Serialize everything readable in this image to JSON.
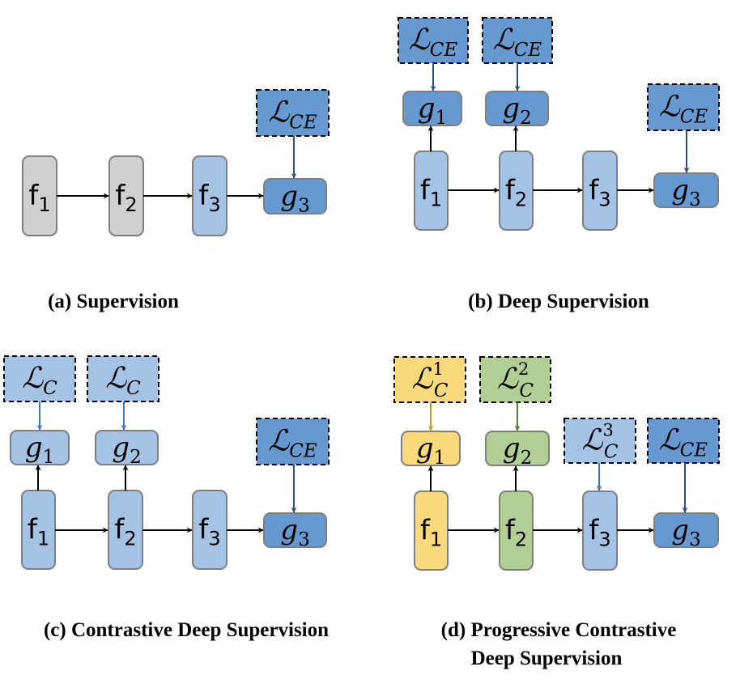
{
  "colors": {
    "gray": "#d0cfcf",
    "light_blue": "#a4c2e4",
    "dark_blue": "#6699cf",
    "yellow": "#f9d97a",
    "green": "#b1cf95",
    "node_stroke": "#7f7f7f",
    "arrow_black": "#000000",
    "arrow_dark_blue": "#2f4f7f",
    "arrow_gold": "#c49a2c",
    "arrow_green": "#548235",
    "arrow_blue": "#4472c4"
  },
  "labels": {
    "f1": {
      "base": "f",
      "sub": "1"
    },
    "f2": {
      "base": "f",
      "sub": "2"
    },
    "f3": {
      "base": "f",
      "sub": "3"
    },
    "g1": {
      "base": "g",
      "sub": "1"
    },
    "g2": {
      "base": "g",
      "sub": "2"
    },
    "g3": {
      "base": "g",
      "sub": "3"
    },
    "lce": {
      "base": "ℒ",
      "sub": "CE"
    },
    "lc": {
      "base": "ℒ",
      "sub": "C"
    },
    "lc1": {
      "base": "ℒ",
      "sub": "C",
      "sup": "1"
    },
    "lc2": {
      "base": "ℒ",
      "sub": "C",
      "sup": "2"
    },
    "lc3": {
      "base": "ℒ",
      "sub": "C",
      "sup": "3"
    }
  },
  "captions": {
    "a": "(a)  Supervision",
    "b": "(b) Deep Supervision",
    "c": "(c) Contrastive Deep Supervision",
    "d_line1": "(d) Progressive Contrastive",
    "d_line2": "Deep Supervision"
  }
}
